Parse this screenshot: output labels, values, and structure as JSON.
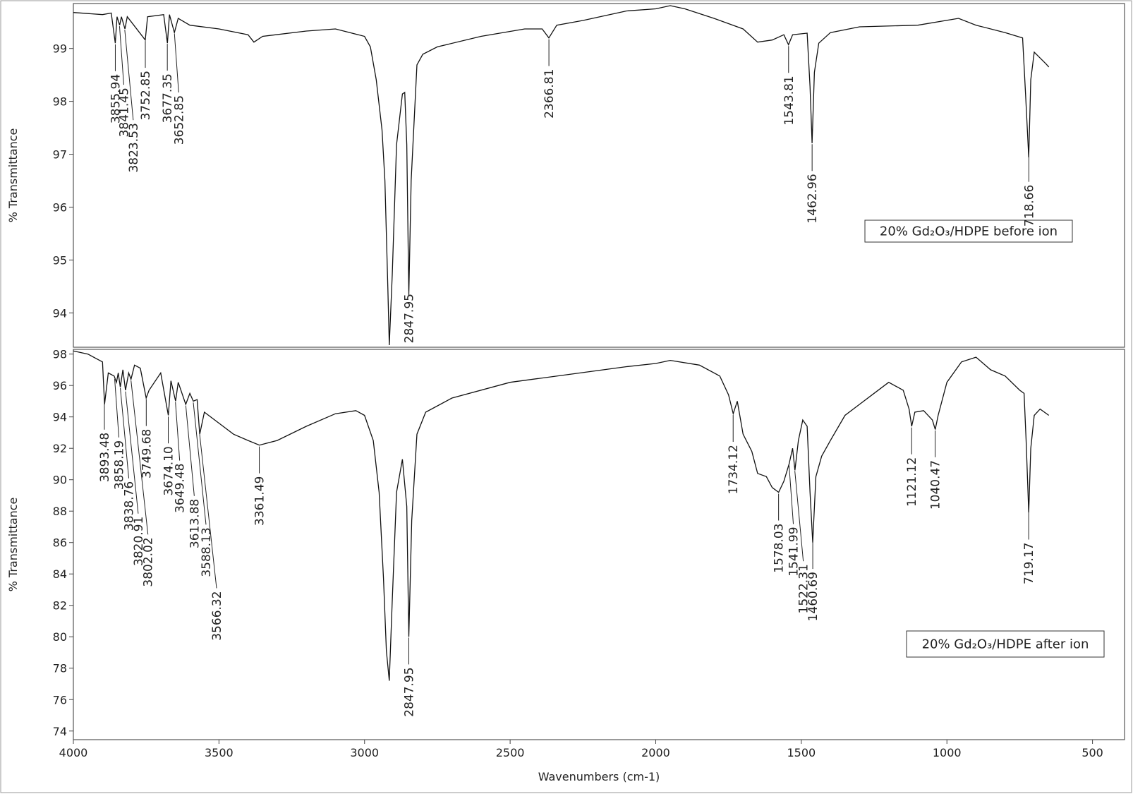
{
  "chart_data": [
    {
      "type": "line",
      "ylabel": "% Transmittance",
      "xlim": [
        4000,
        390
      ],
      "ylim": [
        93.35,
        99.85
      ],
      "yticks": [
        94,
        95,
        96,
        97,
        98,
        99
      ],
      "x": [
        4000,
        3900,
        3870,
        3856,
        3850,
        3841,
        3835,
        3823,
        3815,
        3753,
        3745,
        3690,
        3677,
        3670,
        3653,
        3640,
        3600,
        3500,
        3400,
        3380,
        3350,
        3200,
        3100,
        3050,
        3000,
        2980,
        2960,
        2940,
        2930,
        2920,
        2915,
        2905,
        2890,
        2870,
        2862,
        2855,
        2848,
        2840,
        2820,
        2800,
        2750,
        2600,
        2450,
        2390,
        2367,
        2340,
        2250,
        2100,
        2000,
        1950,
        1900,
        1800,
        1700,
        1650,
        1600,
        1560,
        1544,
        1530,
        1480,
        1470,
        1463,
        1455,
        1440,
        1400,
        1300,
        1100,
        960,
        900,
        800,
        740,
        730,
        719,
        712,
        700,
        680,
        660,
        650
      ],
      "series": [
        {
          "name": "20% Gd₂O₃/HDPE before ion",
          "color": "#111111",
          "values": [
            99.68,
            99.64,
            99.67,
            99.1,
            99.6,
            99.44,
            99.6,
            99.37,
            99.6,
            99.16,
            99.6,
            99.64,
            99.1,
            99.64,
            99.3,
            99.57,
            99.44,
            99.37,
            99.26,
            99.12,
            99.23,
            99.33,
            99.37,
            99.3,
            99.23,
            99.03,
            98.41,
            97.46,
            96.5,
            94.45,
            93.39,
            94.72,
            97.18,
            98.14,
            98.17,
            97.18,
            94.34,
            96.5,
            98.69,
            98.89,
            99.03,
            99.23,
            99.37,
            99.37,
            99.2,
            99.44,
            99.53,
            99.71,
            99.75,
            99.81,
            99.75,
            99.57,
            99.37,
            99.12,
            99.16,
            99.26,
            99.07,
            99.26,
            99.29,
            98.28,
            97.21,
            98.55,
            99.1,
            99.3,
            99.41,
            99.44,
            99.57,
            99.44,
            99.3,
            99.2,
            98.14,
            96.94,
            98.41,
            98.93,
            98.82,
            98.71,
            98.65
          ]
        }
      ],
      "peaks": [
        {
          "value": 3855.94,
          "label": "3855.94"
        },
        {
          "value": 3841.45,
          "label": "3841.45"
        },
        {
          "value": 3823.53,
          "label": "3823.53"
        },
        {
          "value": 3752.85,
          "label": "3752.85"
        },
        {
          "value": 3677.35,
          "label": "3677.35"
        },
        {
          "value": 3652.85,
          "label": "3652.85"
        },
        {
          "value": 2847.95,
          "label": "2847.95"
        },
        {
          "value": 2366.81,
          "label": "2366.81"
        },
        {
          "value": 1543.81,
          "label": "1543.81"
        },
        {
          "value": 1462.96,
          "label": "1462.96"
        },
        {
          "value": 718.66,
          "label": "718.66"
        }
      ]
    },
    {
      "type": "line",
      "ylabel": "% Transmittance",
      "xlabel": "Wavenumbers (cm-1)",
      "xlim": [
        4000,
        390
      ],
      "xticks": [
        4000,
        3500,
        3000,
        2500,
        2000,
        1500,
        1000,
        500
      ],
      "ylim": [
        73.45,
        98.3
      ],
      "yticks": [
        74,
        76,
        78,
        80,
        82,
        84,
        86,
        88,
        90,
        92,
        94,
        96,
        98
      ],
      "x": [
        4000,
        3950,
        3910,
        3900,
        3893,
        3880,
        3860,
        3852,
        3846,
        3839,
        3830,
        3821,
        3810,
        3802,
        3790,
        3770,
        3750,
        3740,
        3700,
        3674,
        3665,
        3649,
        3640,
        3614,
        3600,
        3588,
        3575,
        3566,
        3550,
        3500,
        3450,
        3400,
        3361,
        3300,
        3200,
        3100,
        3030,
        3000,
        2970,
        2950,
        2935,
        2925,
        2915,
        2905,
        2890,
        2870,
        2855,
        2848,
        2838,
        2820,
        2790,
        2700,
        2500,
        2300,
        2100,
        2000,
        1950,
        1850,
        1780,
        1750,
        1734,
        1720,
        1700,
        1670,
        1650,
        1620,
        1600,
        1578,
        1560,
        1542,
        1530,
        1522,
        1510,
        1495,
        1480,
        1470,
        1461,
        1450,
        1430,
        1400,
        1350,
        1300,
        1250,
        1200,
        1150,
        1130,
        1121,
        1110,
        1080,
        1050,
        1040,
        1030,
        1000,
        950,
        900,
        850,
        800,
        750,
        735,
        728,
        719,
        712,
        700,
        680,
        650
      ],
      "series": [
        {
          "name": "20% Gd₂O₃/HDPE after ion",
          "color": "#111111",
          "values": [
            98.2,
            98.0,
            97.6,
            97.5,
            94.8,
            96.8,
            96.6,
            96.2,
            96.8,
            95.9,
            97.0,
            95.7,
            96.8,
            96.4,
            97.3,
            97.1,
            95.2,
            95.7,
            96.8,
            94.1,
            96.3,
            95.0,
            96.2,
            94.8,
            95.5,
            95.0,
            95.1,
            92.9,
            94.3,
            93.6,
            92.9,
            92.5,
            92.2,
            92.5,
            93.4,
            94.2,
            94.4,
            94.1,
            92.5,
            89.2,
            83.7,
            79.1,
            77.2,
            82.3,
            89.2,
            91.3,
            88.3,
            80.0,
            87.4,
            92.9,
            94.3,
            95.2,
            96.2,
            96.7,
            97.2,
            97.4,
            97.6,
            97.3,
            96.6,
            95.4,
            94.2,
            95.0,
            92.9,
            91.8,
            90.4,
            90.2,
            89.5,
            89.2,
            89.9,
            91.0,
            92.0,
            90.6,
            92.5,
            93.8,
            93.4,
            89.2,
            86.0,
            90.2,
            91.5,
            92.5,
            94.1,
            94.8,
            95.5,
            96.2,
            95.7,
            94.5,
            93.4,
            94.3,
            94.4,
            93.8,
            93.2,
            94.1,
            96.2,
            97.5,
            97.8,
            97.0,
            96.6,
            95.7,
            95.5,
            92.5,
            87.9,
            92.0,
            94.1,
            94.5,
            94.1
          ]
        }
      ],
      "peaks": [
        {
          "value": 3893.48,
          "label": "3893.48"
        },
        {
          "value": 3858.19,
          "label": "3858.19"
        },
        {
          "value": 3838.76,
          "label": "3838.76"
        },
        {
          "value": 3820.91,
          "label": "3820.91"
        },
        {
          "value": 3802.02,
          "label": "3802.02"
        },
        {
          "value": 3749.68,
          "label": "3749.68"
        },
        {
          "value": 3674.1,
          "label": "3674.10"
        },
        {
          "value": 3649.48,
          "label": "3649.48"
        },
        {
          "value": 3613.88,
          "label": "3613.88"
        },
        {
          "value": 3588.13,
          "label": "3588.13"
        },
        {
          "value": 3566.32,
          "label": "3566.32"
        },
        {
          "value": 3361.49,
          "label": "3361.49"
        },
        {
          "value": 2847.95,
          "label": "2847.95"
        },
        {
          "value": 1734.12,
          "label": "1734.12"
        },
        {
          "value": 1578.03,
          "label": "1578.03"
        },
        {
          "value": 1541.99,
          "label": "1541.99"
        },
        {
          "value": 1522.31,
          "label": "1522.31"
        },
        {
          "value": 1460.69,
          "label": "1460.69"
        },
        {
          "value": 1121.12,
          "label": "1121.12"
        },
        {
          "value": 1040.47,
          "label": "1040.47"
        },
        {
          "value": 719.17,
          "label": "719.17"
        }
      ]
    }
  ]
}
